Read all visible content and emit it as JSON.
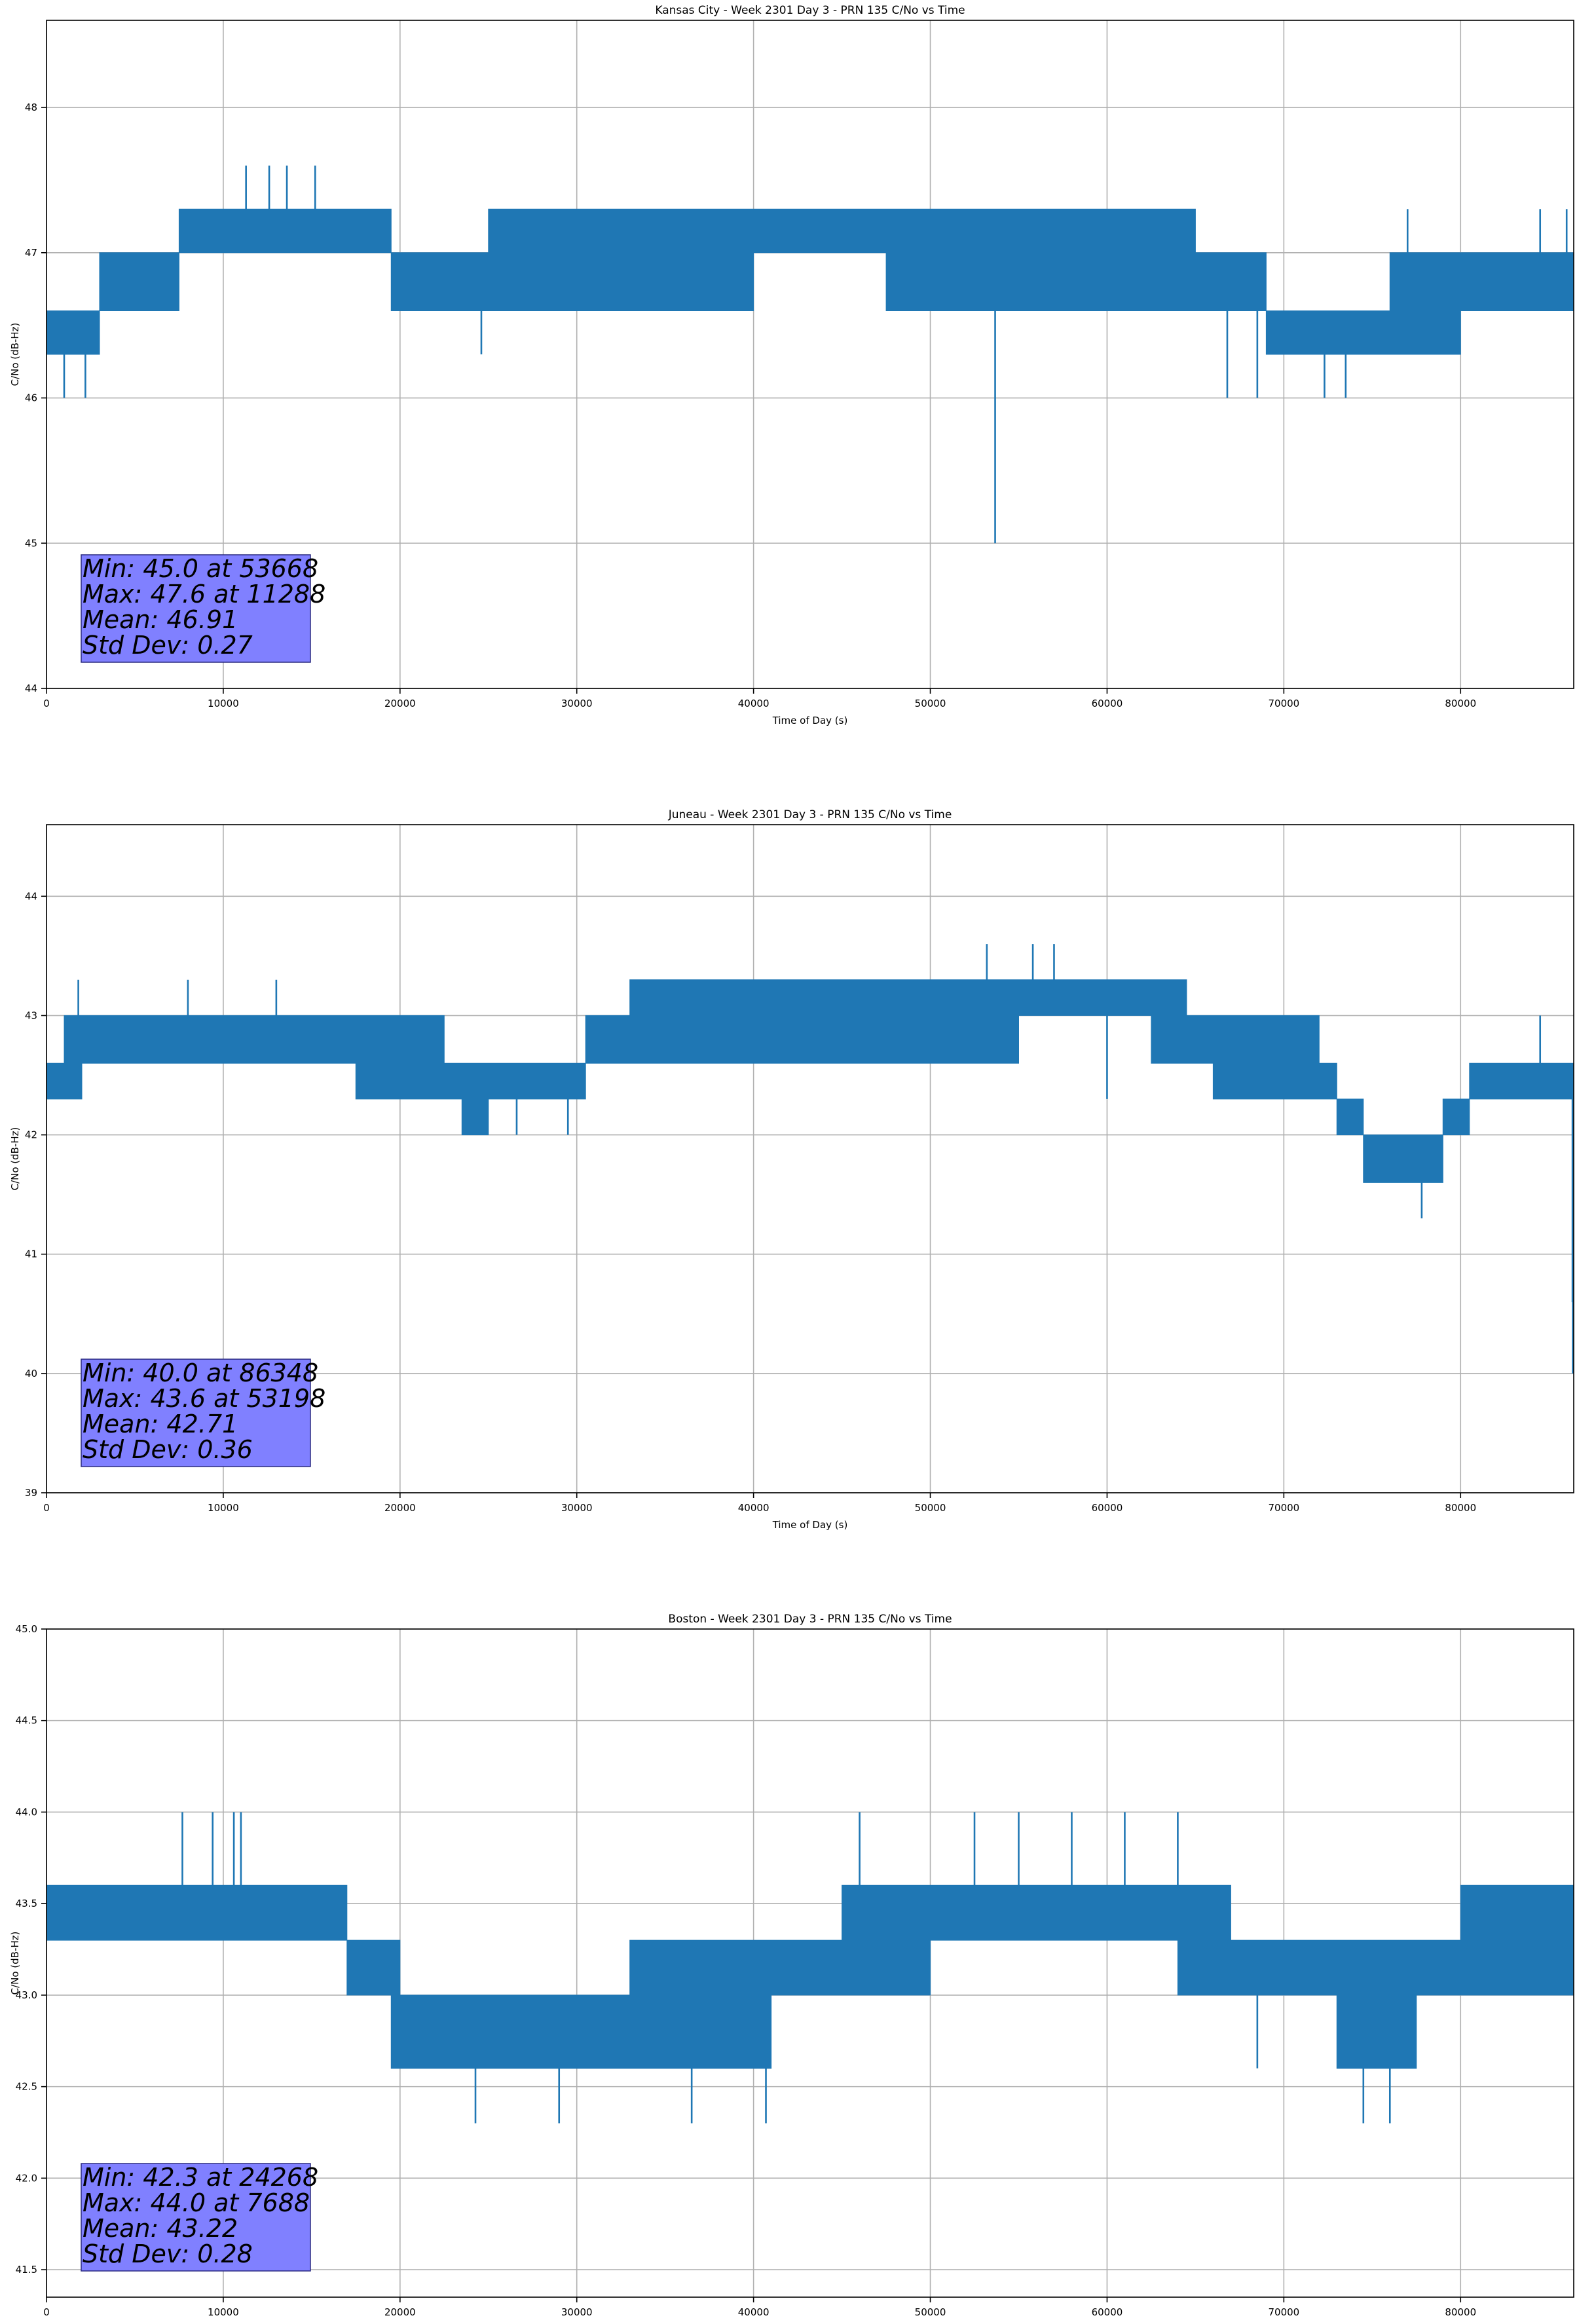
{
  "colors": {
    "line": "#1f77b4",
    "grid": "#b0b0b0",
    "statsBox": "#8080ff"
  },
  "chart_data": [
    {
      "type": "line",
      "title": "Kansas City - Week 2301 Day 3 - PRN 135 C/No vs Time",
      "xlabel": "Time of Day (s)",
      "ylabel": "C/No (dB-Hz)",
      "xlim": [
        0,
        86400
      ],
      "ylim": [
        44,
        48.6
      ],
      "xticks": [
        0,
        10000,
        20000,
        30000,
        40000,
        50000,
        60000,
        70000,
        80000
      ],
      "yticks": [
        44,
        45,
        46,
        47,
        48
      ],
      "ytick_labels": [
        "44",
        "45",
        "46",
        "47",
        "48"
      ],
      "grid": true,
      "stats": [
        "Min: 45.0 at 53668",
        "Max: 47.6 at 11288",
        "Mean: 46.91",
        "Std Dev: 0.27"
      ],
      "series": [
        {
          "name": "C/No",
          "x": [
            0,
            2000,
            3000,
            6000,
            7500,
            10000,
            11300,
            15000,
            19500,
            20000,
            24500,
            25000,
            30000,
            35000,
            40000,
            45000,
            47500,
            50000,
            53668,
            55000,
            60000,
            65000,
            67000,
            69000,
            70000,
            73000,
            76000,
            80000,
            84000,
            86400
          ],
          "lo": [
            46.3,
            46.3,
            46.6,
            46.6,
            47.0,
            47.0,
            47.0,
            47.0,
            46.6,
            46.6,
            46.6,
            46.6,
            46.6,
            46.6,
            47.0,
            47.0,
            46.6,
            46.6,
            46.6,
            46.6,
            46.6,
            46.6,
            46.6,
            46.3,
            46.3,
            46.3,
            46.3,
            46.6,
            46.6,
            46.6
          ],
          "hi": [
            46.6,
            46.6,
            47.0,
            47.0,
            47.3,
            47.3,
            47.3,
            47.3,
            47.0,
            47.0,
            47.0,
            47.3,
            47.3,
            47.3,
            47.3,
            47.3,
            47.3,
            47.3,
            47.3,
            47.3,
            47.3,
            47.0,
            47.0,
            46.6,
            46.6,
            46.6,
            47.0,
            47.0,
            47.0,
            47.0
          ],
          "spikes": [
            [
              1000,
              46.0
            ],
            [
              2200,
              46.0
            ],
            [
              11288,
              47.6
            ],
            [
              12600,
              47.6
            ],
            [
              13600,
              47.6
            ],
            [
              15200,
              47.6
            ],
            [
              24600,
              46.3
            ],
            [
              53668,
              45.0
            ],
            [
              66800,
              46.0
            ],
            [
              68500,
              46.0
            ],
            [
              72300,
              46.0
            ],
            [
              73500,
              46.0
            ],
            [
              77000,
              47.3
            ],
            [
              84500,
              47.3
            ],
            [
              86000,
              47.3
            ]
          ]
        }
      ]
    },
    {
      "type": "line",
      "title": "Juneau - Week 2301 Day 3 - PRN 135 C/No vs Time",
      "xlabel": "Time of Day (s)",
      "ylabel": "C/No (dB-Hz)",
      "xlim": [
        0,
        86400
      ],
      "ylim": [
        39,
        44.6
      ],
      "xticks": [
        0,
        10000,
        20000,
        30000,
        40000,
        50000,
        60000,
        70000,
        80000
      ],
      "yticks": [
        39,
        40,
        41,
        42,
        43,
        44
      ],
      "ytick_labels": [
        "39",
        "40",
        "41",
        "42",
        "43",
        "44"
      ],
      "grid": true,
      "stats": [
        "Min: 40.0 at 86348",
        "Max: 43.6 at 53198",
        "Mean: 42.71",
        "Std Dev: 0.36"
      ],
      "series": [
        {
          "name": "C/No",
          "x": [
            0,
            1000,
            2000,
            5000,
            10000,
            12500,
            17500,
            20000,
            22500,
            23500,
            25000,
            30000,
            30500,
            33000,
            40000,
            45000,
            50000,
            53000,
            55000,
            60000,
            62500,
            64500,
            66000,
            68000,
            70000,
            72000,
            73000,
            74500,
            77000,
            78000,
            79000,
            80500,
            81000,
            85000,
            86000,
            86300
          ],
          "lo": [
            42.3,
            42.3,
            42.6,
            42.6,
            42.6,
            42.6,
            42.3,
            42.3,
            42.3,
            42.0,
            42.3,
            42.3,
            42.6,
            42.6,
            42.6,
            42.6,
            42.6,
            42.6,
            43.0,
            43.0,
            42.6,
            42.6,
            42.3,
            42.3,
            42.3,
            42.3,
            42.0,
            41.6,
            41.6,
            41.6,
            42.0,
            42.3,
            42.3,
            42.3,
            42.3,
            40.6
          ],
          "hi": [
            42.6,
            43.0,
            43.0,
            43.0,
            43.0,
            43.0,
            43.0,
            43.0,
            42.6,
            42.6,
            42.6,
            42.6,
            43.0,
            43.3,
            43.3,
            43.3,
            43.3,
            43.3,
            43.3,
            43.3,
            43.3,
            43.0,
            43.0,
            43.0,
            43.0,
            42.6,
            42.3,
            42.0,
            42.0,
            42.0,
            42.3,
            42.6,
            42.6,
            42.6,
            42.6,
            42.6
          ],
          "spikes": [
            [
              1800,
              43.3
            ],
            [
              8000,
              43.3
            ],
            [
              13000,
              43.3
            ],
            [
              23600,
              42.0
            ],
            [
              26600,
              42.0
            ],
            [
              29500,
              42.0
            ],
            [
              53198,
              43.6
            ],
            [
              55800,
              43.6
            ],
            [
              57000,
              43.6
            ],
            [
              60000,
              42.3
            ],
            [
              77800,
              41.3
            ],
            [
              84500,
              43.0
            ],
            [
              86348,
              40.0
            ]
          ]
        }
      ]
    },
    {
      "type": "line",
      "title": "Boston - Week 2301 Day 3 - PRN 135 C/No vs Time",
      "xlabel": "Time of Day (s)",
      "ylabel": "C/No (dB-Hz)",
      "xlim": [
        0,
        86400
      ],
      "ylim": [
        41.35,
        45.0
      ],
      "xticks": [
        0,
        10000,
        20000,
        30000,
        40000,
        50000,
        60000,
        70000,
        80000
      ],
      "yticks": [
        41.5,
        42.0,
        42.5,
        43.0,
        43.5,
        44.0,
        44.5,
        45.0
      ],
      "ytick_labels": [
        "41.5",
        "42.0",
        "42.5",
        "43.0",
        "43.5",
        "44.0",
        "44.5",
        "45.0"
      ],
      "grid": true,
      "stats": [
        "Min: 42.3 at 24268",
        "Max: 44.0 at 7688",
        "Mean: 43.22",
        "Std Dev: 0.28"
      ],
      "series": [
        {
          "name": "C/No",
          "x": [
            0,
            5000,
            10000,
            15000,
            17000,
            19500,
            20000,
            25000,
            30000,
            33000,
            36000,
            40000,
            41000,
            45000,
            50000,
            55000,
            60000,
            64000,
            67000,
            70000,
            73000,
            76000,
            77500,
            80000,
            84000,
            86400
          ],
          "lo": [
            43.3,
            43.3,
            43.3,
            43.3,
            43.0,
            42.6,
            42.6,
            42.6,
            42.6,
            42.6,
            42.6,
            42.6,
            43.0,
            43.0,
            43.3,
            43.3,
            43.3,
            43.0,
            43.0,
            43.0,
            42.6,
            42.6,
            43.0,
            43.0,
            43.0,
            43.0
          ],
          "hi": [
            43.6,
            43.6,
            43.6,
            43.6,
            43.3,
            43.3,
            43.0,
            43.0,
            43.0,
            43.3,
            43.3,
            43.3,
            43.3,
            43.6,
            43.6,
            43.6,
            43.6,
            43.6,
            43.3,
            43.3,
            43.3,
            43.3,
            43.3,
            43.6,
            43.6,
            43.6
          ],
          "spikes": [
            [
              7688,
              44.0
            ],
            [
              9400,
              44.0
            ],
            [
              10600,
              44.0
            ],
            [
              11000,
              44.0
            ],
            [
              24268,
              42.3
            ],
            [
              29000,
              42.3
            ],
            [
              36500,
              42.3
            ],
            [
              40700,
              42.3
            ],
            [
              46000,
              44.0
            ],
            [
              52500,
              44.0
            ],
            [
              55000,
              44.0
            ],
            [
              58000,
              44.0
            ],
            [
              61000,
              44.0
            ],
            [
              64000,
              44.0
            ],
            [
              68500,
              42.6
            ],
            [
              74500,
              42.3
            ],
            [
              76000,
              42.3
            ],
            [
              86000,
              43.0
            ]
          ]
        }
      ]
    }
  ]
}
